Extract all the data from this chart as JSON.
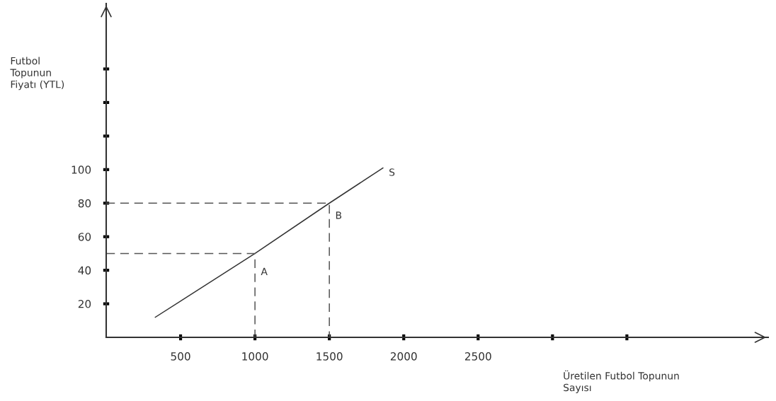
{
  "chart_data": {
    "type": "line",
    "xlabel": "Üretilen Futbol Topunun\nSayısı",
    "ylabel": "Futbol\nTopunun\nFiyatı (YTL)",
    "xlim": [
      0,
      4450
    ],
    "ylim": [
      0,
      199
    ],
    "xticks": [
      500,
      1000,
      1500,
      2000,
      2500,
      {
        "value": 3000,
        "label": null
      },
      {
        "value": 3500,
        "label": null
      }
    ],
    "yticks": [
      20,
      40,
      60,
      80,
      100,
      {
        "value": 120,
        "label": null
      },
      {
        "value": 140,
        "label": null
      },
      {
        "value": 160,
        "label": null
      }
    ],
    "series": [
      {
        "color": "#333333",
        "x": [
          330,
          1000,
          1500,
          1860
        ],
        "values": [
          12,
          50,
          80,
          101
        ],
        "line_style": "solid"
      },
      {
        "color": "#555555",
        "x": [
          0,
          1000,
          1000
        ],
        "values": [
          50,
          50,
          0
        ],
        "line_style": "dashed"
      },
      {
        "color": "#555555",
        "x": [
          0,
          1500,
          1500
        ],
        "values": [
          80,
          80,
          0
        ],
        "line_style": "dashed"
      }
    ],
    "annotations": [
      {
        "text": "A",
        "x": 1000,
        "y": 50
      },
      {
        "text": "B",
        "x": 1500,
        "y": 80
      },
      {
        "text": "S",
        "x": 1860,
        "y": 101
      }
    ],
    "grid": false,
    "legend": false
  }
}
